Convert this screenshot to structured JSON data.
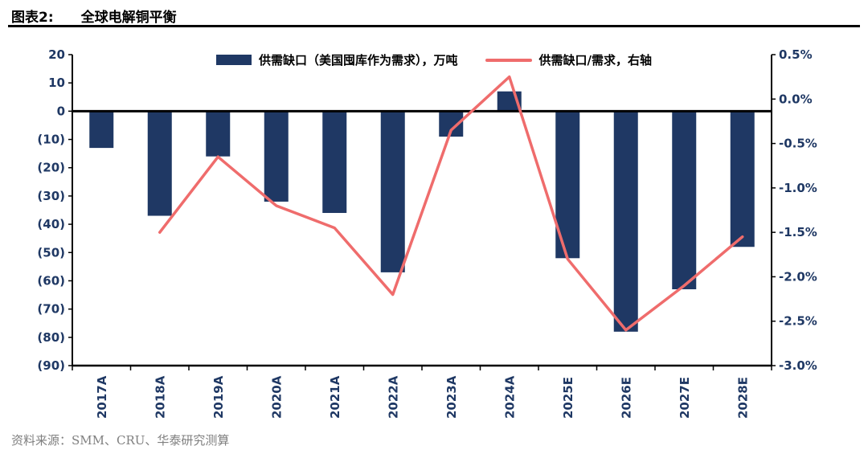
{
  "header": {
    "label": "图表2:",
    "title": "全球电解铜平衡"
  },
  "footer": {
    "source": "资料来源：SMM、CRU、华泰研究测算"
  },
  "colors": {
    "bar": "#1f3864",
    "line": "#ef6c6c",
    "axis_text": "#1f3864",
    "axis_line": "#000000"
  },
  "chart_data": {
    "type": "bar",
    "title": "全球电解铜平衡",
    "categories": [
      "2017A",
      "2018A",
      "2019A",
      "2020A",
      "2021A",
      "2022A",
      "2023A",
      "2024A",
      "2025E",
      "2026E",
      "2027E",
      "2028E"
    ],
    "series": [
      {
        "name": "供需缺口（美国囤库作为需求），万吨",
        "type": "bar",
        "axis": "left",
        "color": "#1f3864",
        "values": [
          -13,
          -37,
          -16,
          -32,
          -36,
          -57,
          -9,
          7,
          -52,
          -78,
          -63,
          -48
        ]
      },
      {
        "name": "供需缺口/需求，右轴",
        "type": "line",
        "axis": "right",
        "color": "#ef6c6c",
        "values": [
          null,
          -1.5,
          -0.65,
          -1.2,
          -1.45,
          -2.2,
          -0.35,
          0.25,
          -1.8,
          -2.6,
          -2.1,
          -1.55
        ]
      }
    ],
    "left_axis": {
      "min": -90,
      "max": 20,
      "step": 10,
      "unit": "万吨",
      "tick_labels": [
        "20",
        "10",
        "0",
        "(10)",
        "(20)",
        "(30)",
        "(40)",
        "(50)",
        "(60)",
        "(70)",
        "(80)",
        "(90)"
      ]
    },
    "right_axis": {
      "min": -3.0,
      "max": 0.5,
      "step": 0.5,
      "unit": "%",
      "tick_labels": [
        "0.5%",
        "0.0%",
        "-0.5%",
        "-1.0%",
        "-1.5%",
        "-2.0%",
        "-2.5%",
        "-3.0%"
      ]
    },
    "legend_position": "top-inside",
    "grid": false
  }
}
